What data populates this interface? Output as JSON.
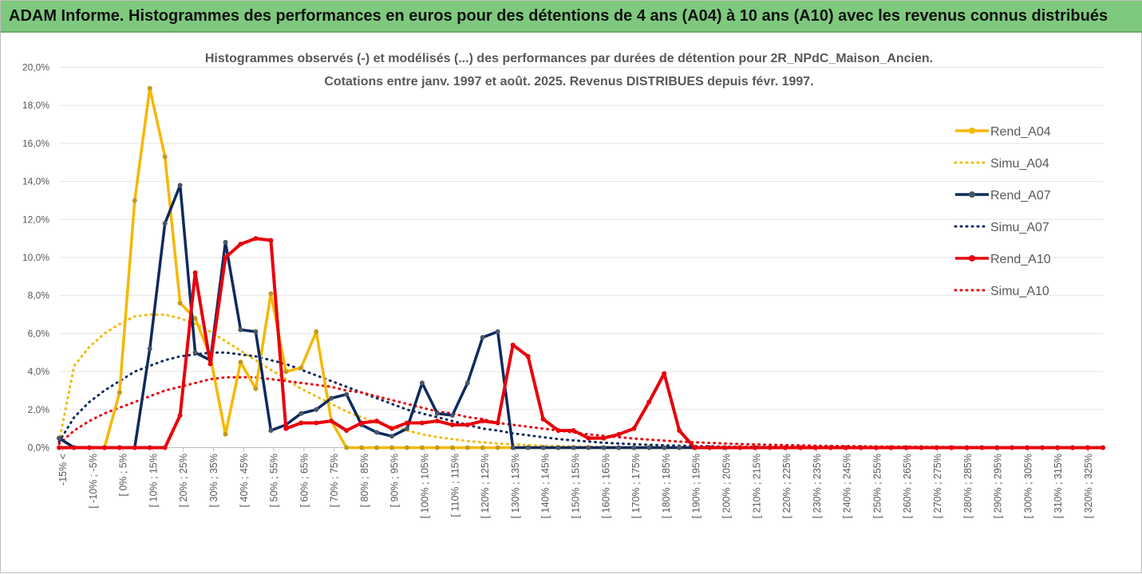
{
  "header": {
    "banner_title": "ADAM Informe. Histogrammes des performances en euros pour des détentions de 4 ans (A04) à 10 ans (A10) avec les revenus connus distribués"
  },
  "chart_data": {
    "type": "line",
    "title": "Histogrammes observés (-) et modélisés (...) des performances par durées de détention pour 2R_NPdC_Maison_Ancien.",
    "subtitle": "Cotations entre janv. 1997 et août. 2025. Revenus DISTRIBUES depuis févr. 1997.",
    "xlabel": "",
    "ylabel": "",
    "ylim": [
      0,
      20
    ],
    "y_tick_labels": [
      "0,0%",
      "2,0%",
      "4,0%",
      "6,0%",
      "8,0%",
      "10,0%",
      "12,0%",
      "14,0%",
      "16,0%",
      "18,0%",
      "20,0%"
    ],
    "grid": "horizontal",
    "legend_position": "right",
    "x_tick_labels": [
      "-15% <",
      "[ -10% ; -5%",
      "[ 0% ; 5%",
      "[ 10% ; 15%",
      "[ 20% ; 25%",
      "[ 30% ; 35%",
      "[ 40% ; 45%",
      "[ 50% ; 55%",
      "[ 60% ; 65%",
      "[ 70% ; 75%",
      "[ 80% ; 85%",
      "[ 90% ; 95%",
      "[ 100% ; 105%",
      "[ 110% ; 115%",
      "[ 120% ; 125%",
      "[ 130% ; 135%",
      "[ 140% ; 145%",
      "[ 150% ; 155%",
      "[ 160% ; 165%",
      "[ 170% ; 175%",
      "[ 180% ; 185%",
      "[ 190% ; 195%",
      "[ 200% ; 205%",
      "[ 210% ; 215%",
      "[ 220% ; 225%",
      "[ 230% ; 235%",
      "[ 240% ; 245%",
      "[ 250% ; 255%",
      "[ 260% ; 265%",
      "[ 270% ; 275%",
      "[ 280% ; 285%",
      "[ 290% ; 295%",
      "[ 300% ; 305%",
      "[ 310% ; 315%",
      "[ 320% ; 325%"
    ],
    "x_lower_bounds": [
      -15,
      -15,
      -10,
      -5,
      0,
      5,
      10,
      15,
      20,
      25,
      30,
      35,
      40,
      45,
      50,
      55,
      60,
      65,
      70,
      75,
      80,
      85,
      90,
      95,
      100,
      105,
      110,
      115,
      120,
      125,
      130,
      135,
      140,
      145,
      150,
      155,
      160,
      165,
      170,
      175,
      180,
      185,
      190,
      195,
      200,
      205,
      210,
      215,
      220,
      225,
      230,
      235,
      240,
      245,
      250,
      255,
      260,
      265,
      270,
      275,
      280,
      285,
      290,
      295,
      300,
      305,
      310,
      315,
      320,
      325
    ],
    "series": [
      {
        "name": "Rend_A04",
        "style": "solid-markers",
        "color": "#f5b800",
        "values": [
          0.5,
          0,
          0,
          0,
          2.9,
          13.0,
          18.9,
          15.3,
          7.6,
          6.8,
          4.8,
          0.7,
          4.5,
          3.1,
          8.1,
          4.0,
          4.2,
          6.1,
          1.4,
          0,
          0,
          0,
          0,
          0,
          0,
          0,
          0,
          0,
          0,
          0,
          0,
          0,
          0,
          0,
          0,
          0,
          0,
          0,
          0,
          0,
          0,
          0,
          0,
          0,
          0,
          0,
          0,
          0,
          0,
          0,
          0,
          0,
          0,
          0,
          0,
          0,
          0,
          0,
          0,
          0,
          0,
          0,
          0,
          0,
          0,
          0,
          0,
          0,
          0,
          0
        ]
      },
      {
        "name": "Simu_A04",
        "style": "dotted",
        "color": "#f5b800",
        "values": [
          0.3,
          4.3,
          5.3,
          6.0,
          6.5,
          6.9,
          7.0,
          7.0,
          6.8,
          6.5,
          6.1,
          5.6,
          5.1,
          4.6,
          4.1,
          3.6,
          3.1,
          2.7,
          2.3,
          1.9,
          1.6,
          1.3,
          1.1,
          0.9,
          0.7,
          0.55,
          0.45,
          0.35,
          0.28,
          0.22,
          0.17,
          0.13,
          0.1,
          0.08,
          0.06,
          0.05,
          0.04,
          0.03,
          0.02,
          0.02,
          0.01,
          0.01,
          0.01,
          0.01,
          0,
          0,
          0,
          0,
          0,
          0,
          0,
          0,
          0,
          0,
          0,
          0,
          0,
          0,
          0,
          0,
          0,
          0,
          0,
          0,
          0,
          0,
          0,
          0,
          0,
          0
        ]
      },
      {
        "name": "Rend_A07",
        "style": "solid-markers",
        "color": "#0e2a5e",
        "values": [
          0.5,
          0,
          0,
          0,
          0,
          0,
          5.2,
          11.8,
          13.8,
          5.0,
          4.6,
          10.8,
          6.2,
          6.1,
          0.9,
          1.2,
          1.8,
          2.0,
          2.6,
          2.8,
          1.2,
          0.8,
          0.6,
          1.0,
          3.4,
          1.8,
          1.7,
          3.4,
          5.8,
          6.1,
          0,
          0,
          0,
          0,
          0,
          0,
          0,
          0,
          0,
          0,
          0,
          0,
          0,
          0,
          0,
          0,
          0,
          0,
          0,
          0,
          0,
          0,
          0,
          0,
          0,
          0,
          0,
          0,
          0,
          0,
          0,
          0,
          0,
          0,
          0,
          0,
          0,
          0,
          0,
          0
        ]
      },
      {
        "name": "Simu_A07",
        "style": "dotted",
        "color": "#0e2a5e",
        "values": [
          0.3,
          1.6,
          2.4,
          3.0,
          3.5,
          4.0,
          4.3,
          4.6,
          4.8,
          4.9,
          5.0,
          5.0,
          4.9,
          4.8,
          4.6,
          4.4,
          4.1,
          3.8,
          3.5,
          3.2,
          2.9,
          2.6,
          2.3,
          2.0,
          1.8,
          1.6,
          1.4,
          1.2,
          1.0,
          0.9,
          0.75,
          0.65,
          0.55,
          0.45,
          0.38,
          0.32,
          0.26,
          0.22,
          0.18,
          0.15,
          0.12,
          0.1,
          0.08,
          0.07,
          0.05,
          0.04,
          0.04,
          0.03,
          0.02,
          0.02,
          0.02,
          0.01,
          0.01,
          0.01,
          0.01,
          0.01,
          0,
          0,
          0,
          0,
          0,
          0,
          0,
          0,
          0,
          0,
          0,
          0,
          0,
          0
        ]
      },
      {
        "name": "Rend_A10",
        "style": "solid-markers",
        "color": "#e8000b",
        "values": [
          0,
          0,
          0,
          0,
          0,
          0,
          0,
          0,
          1.7,
          9.2,
          4.4,
          10.0,
          10.7,
          11.0,
          10.9,
          1.0,
          1.3,
          1.3,
          1.4,
          0.9,
          1.3,
          1.4,
          1.0,
          1.3,
          1.3,
          1.4,
          1.2,
          1.2,
          1.4,
          1.3,
          5.4,
          4.8,
          1.5,
          0.9,
          0.9,
          0.5,
          0.5,
          0.7,
          1.0,
          2.4,
          3.9,
          0.9,
          0,
          0,
          0,
          0,
          0,
          0,
          0,
          0,
          0,
          0,
          0,
          0,
          0,
          0,
          0,
          0,
          0,
          0,
          0,
          0,
          0,
          0,
          0,
          0,
          0,
          0,
          0,
          0
        ]
      },
      {
        "name": "Simu_A10",
        "style": "dotted",
        "color": "#e8000b",
        "values": [
          0.2,
          0.9,
          1.4,
          1.8,
          2.1,
          2.4,
          2.7,
          3.0,
          3.2,
          3.4,
          3.6,
          3.7,
          3.7,
          3.7,
          3.6,
          3.5,
          3.4,
          3.3,
          3.2,
          3.0,
          2.9,
          2.7,
          2.5,
          2.3,
          2.1,
          1.9,
          1.8,
          1.6,
          1.5,
          1.3,
          1.2,
          1.1,
          1.0,
          0.9,
          0.8,
          0.7,
          0.62,
          0.55,
          0.48,
          0.42,
          0.37,
          0.32,
          0.28,
          0.25,
          0.22,
          0.19,
          0.17,
          0.15,
          0.13,
          0.12,
          0.1,
          0.09,
          0.08,
          0.07,
          0.06,
          0.05,
          0.05,
          0.04,
          0.04,
          0.03,
          0.03,
          0.03,
          0.02,
          0.02,
          0.02,
          0.02,
          0.01,
          0.01,
          0.01,
          0.01
        ]
      }
    ]
  }
}
